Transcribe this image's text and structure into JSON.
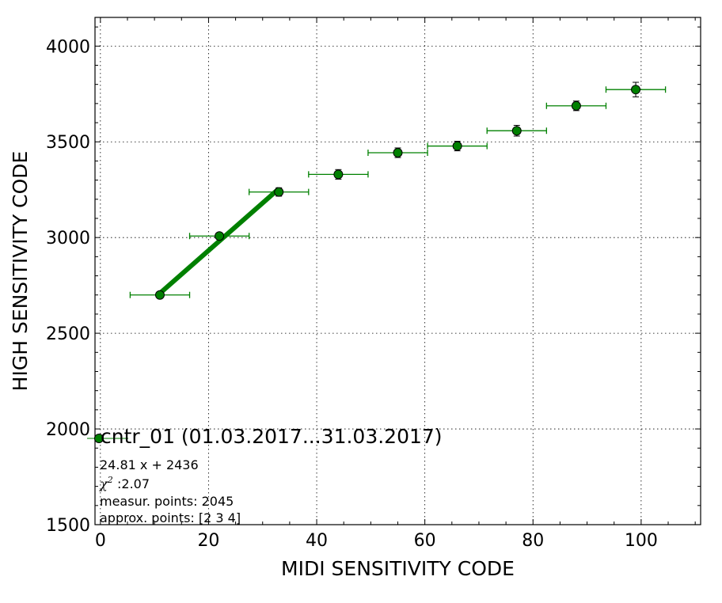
{
  "chart_data": {
    "type": "scatter",
    "xlabel": "MIDI SENSITIVITY CODE",
    "ylabel": "HIGH SENSITIVITY CODE",
    "xlim": [
      -1,
      111
    ],
    "ylim": [
      1500,
      4150
    ],
    "xticks": [
      0,
      20,
      40,
      60,
      80,
      100
    ],
    "yticks": [
      1500,
      2000,
      2500,
      3000,
      3500,
      4000
    ],
    "grid": true,
    "series": [
      {
        "name": "cntr_01 (01.03.2017...31.03.2017)",
        "color": "#008000",
        "marker": "circle",
        "points": [
          {
            "x": 11,
            "y": 2700,
            "xerr": 5.5,
            "yerr": 12
          },
          {
            "x": 22,
            "y": 3008,
            "xerr": 5.5,
            "yerr": 14
          },
          {
            "x": 33,
            "y": 3238,
            "xerr": 5.5,
            "yerr": 22
          },
          {
            "x": 44,
            "y": 3330,
            "xerr": 5.5,
            "yerr": 25
          },
          {
            "x": 55,
            "y": 3443,
            "xerr": 5.5,
            "yerr": 25
          },
          {
            "x": 66,
            "y": 3478,
            "xerr": 5.5,
            "yerr": 25
          },
          {
            "x": 77,
            "y": 3558,
            "xerr": 5.5,
            "yerr": 28
          },
          {
            "x": 88,
            "y": 3688,
            "xerr": 5.5,
            "yerr": 25
          },
          {
            "x": 99,
            "y": 3773,
            "xerr": 5.5,
            "yerr": 38
          }
        ]
      }
    ],
    "fit_line": {
      "x_start": 11,
      "x_end": 33,
      "slope": 24.81,
      "intercept": 2436,
      "color": "#008000"
    },
    "legend": {
      "position": "bottom-left",
      "label": "cntr_01 (01.03.2017...31.03.2017)",
      "fit_text": "24.81 x + 2436",
      "chi2_symbol": "χ",
      "chi2_value": ":2.07",
      "measur_text": "measur. points: 2045",
      "approx_text": "approx. points: [2 3 4]"
    }
  }
}
